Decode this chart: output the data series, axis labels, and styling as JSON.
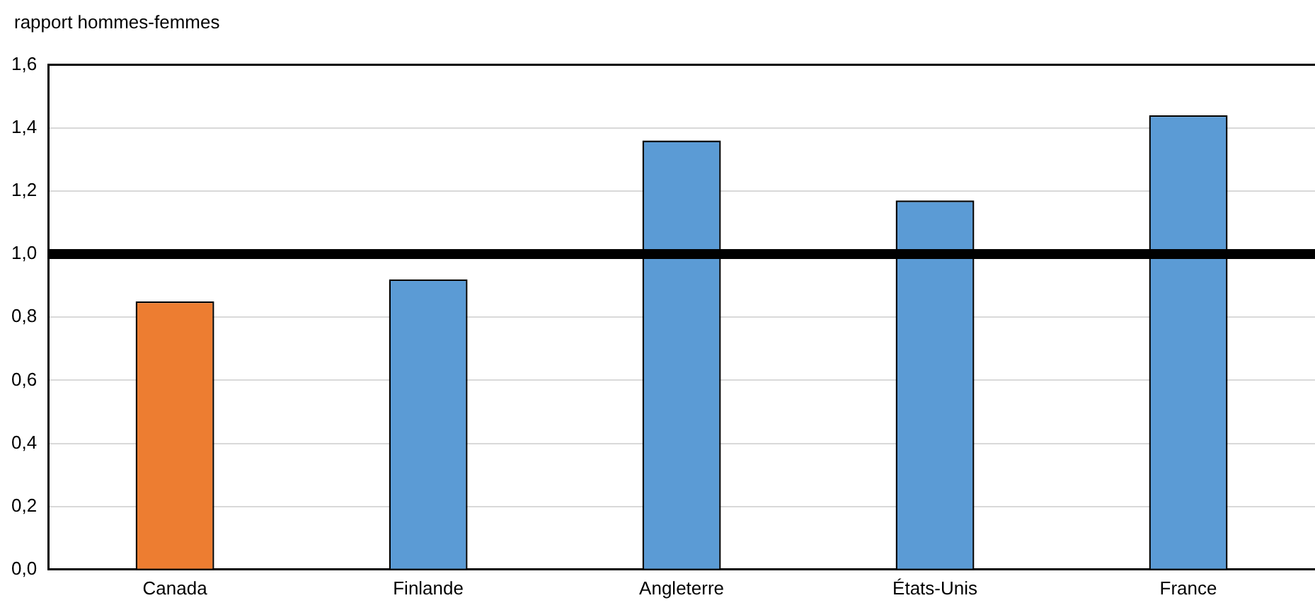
{
  "chart_data": {
    "type": "bar",
    "ylabel": "rapport hommes-femmes",
    "categories": [
      "Canada",
      "Finlande",
      "Angleterre",
      "États-Unis",
      "France"
    ],
    "values": [
      0.85,
      0.92,
      1.36,
      1.17,
      1.44
    ],
    "colors": [
      "#ed7d31",
      "#5b9bd5",
      "#5b9bd5",
      "#5b9bd5",
      "#5b9bd5"
    ],
    "ylim": [
      0,
      1.6
    ],
    "yticks": [
      {
        "value": 0,
        "label": "0,0"
      },
      {
        "value": 0.2,
        "label": "0,2"
      },
      {
        "value": 0.4,
        "label": "0,4"
      },
      {
        "value": 0.6,
        "label": "0,6"
      },
      {
        "value": 0.8,
        "label": "0,8"
      },
      {
        "value": 1,
        "label": "1,0"
      },
      {
        "value": 1.2,
        "label": "1,2"
      },
      {
        "value": 1.4,
        "label": "1,4"
      },
      {
        "value": 1.6,
        "label": "1,6"
      }
    ],
    "grid": "y",
    "ref_lines": [
      {
        "axis": "y",
        "value": 1,
        "color": "#000000"
      }
    ]
  }
}
